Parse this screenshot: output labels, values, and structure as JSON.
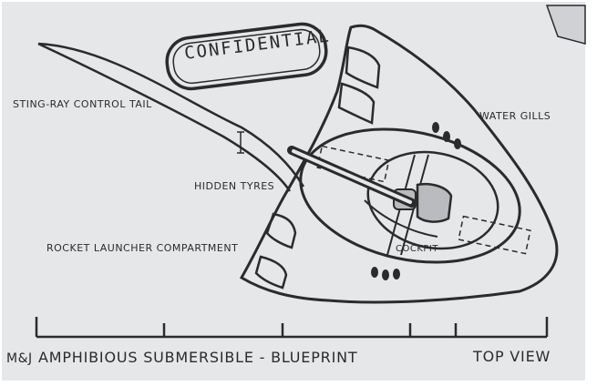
{
  "stamp": {
    "text": "CONFIDENTIAL"
  },
  "labels": {
    "tail": "STING-RAY CONTROL TAIL",
    "water_gills": "WATER GILLS",
    "hidden_tyres": "HIDDEN TYRES",
    "rocket_launcher": "ROCKET LAUNCHER COMPARTMENT",
    "cockpit": "COCKPIT"
  },
  "footer": {
    "brand": "M&J",
    "title": "AMPHIBIOUS SUBMERSIBLE - BLUEPRINT",
    "view": "TOP VIEW"
  },
  "colors": {
    "paper": "#e6e7e9",
    "ink": "#2b2b2b",
    "cockpit_fill": "#b9bbbe"
  }
}
